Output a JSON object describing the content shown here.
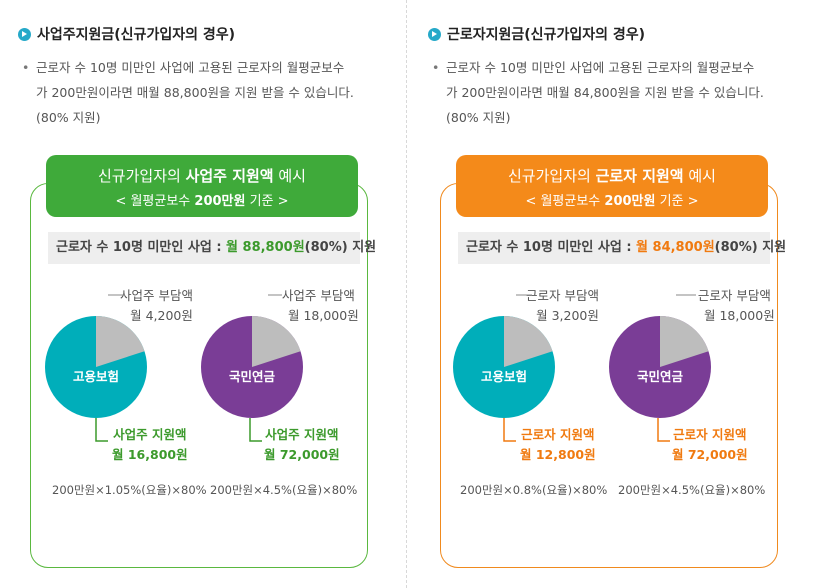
{
  "left": {
    "heading": "사업주지원금(신규가입자의 경우)",
    "desc_line1": "근로자 수 10명 미만인 사업에 고용된 근로자의 월평균보수",
    "desc_line2": "가 200만원이라면 매월 88,800원을 지원 받을 수 있습니다.",
    "desc_line3": "(80% 지원)",
    "banner_pre": "신규가입자의 ",
    "banner_bold": "사업주 지원액",
    "banner_post": " 예시",
    "banner_sub_pre": "< 월평균보수 ",
    "banner_sub_bold": "200만원",
    "banner_sub_post": " 기준 >",
    "bar_pre": "근로자 수 10명 미만인 사업 : ",
    "bar_hl": "월 88,800원",
    "bar_post": "(80%) 지원",
    "pie1": {
      "label": "고용보험",
      "share_label": "사업주 부담액",
      "share_value": "월 4,200원",
      "support_label": "사업주 지원액",
      "support_value": "월 16,800원",
      "formula": "200만원×1.05%(요율)×80%",
      "share_fraction": 0.2
    },
    "pie2": {
      "label": "국민연금",
      "share_label": "사업주 부담액",
      "share_value": "월 18,000원",
      "support_label": "사업주 지원액",
      "support_value": "월 72,000원",
      "formula": "200만원×4.5%(요율)×80%",
      "share_fraction": 0.2
    }
  },
  "right": {
    "heading": "근로자지원금(신규가입자의 경우)",
    "desc_line1": "근로자 수 10명 미만인 사업에 고용된 근로자의 월평균보수",
    "desc_line2": "가 200만원이라면 매월 84,800원을 지원 받을 수 있습니다.",
    "desc_line3": "(80% 지원)",
    "banner_pre": "신규가입자의 ",
    "banner_bold": "근로자 지원액",
    "banner_post": " 예시",
    "banner_sub_pre": "< 월평균보수 ",
    "banner_sub_bold": "200만원",
    "banner_sub_post": " 기준 >",
    "bar_pre": "근로자 수 10명 미만인 사업 : ",
    "bar_hl": "월 84,800원",
    "bar_post": "(80%) 지원",
    "pie1": {
      "label": "고용보험",
      "share_label": "근로자 부담액",
      "share_value": "월 3,200원",
      "support_label": "근로자 지원액",
      "support_value": "월 12,800원",
      "formula": "200만원×0.8%(요율)×80%",
      "share_fraction": 0.2
    },
    "pie2": {
      "label": "국민연금",
      "share_label": "근로자 부담액",
      "share_value": "월 18,000원",
      "support_label": "근로자 지원액",
      "support_value": "월 72,000원",
      "formula": "200만원×4.5%(요율)×80%",
      "share_fraction": 0.2
    }
  },
  "colors": {
    "green": "#3faa3a",
    "orange": "#f48a1a",
    "teal": "#00aeba",
    "purple": "#7a3d96",
    "share_gray": "#bdbdbd",
    "icon_blue": "#26a9c9"
  },
  "icons": {
    "heading_bullet": "circle-play-icon"
  }
}
